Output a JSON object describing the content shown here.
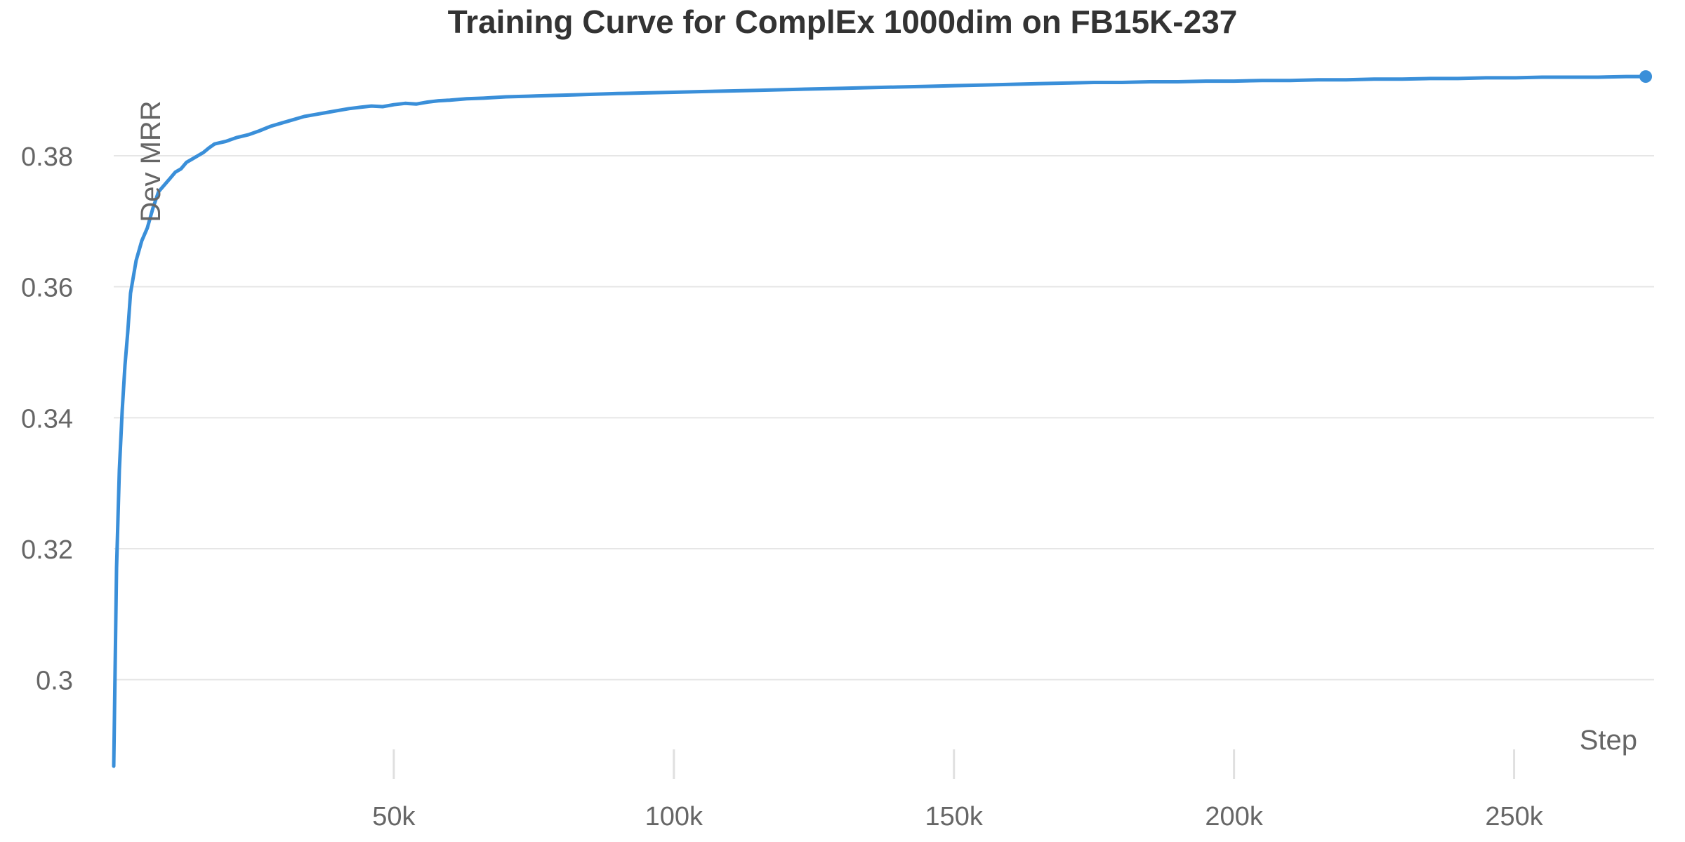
{
  "chart_data": {
    "type": "line",
    "title": "Training Curve for ComplEx 1000dim on FB15K-237",
    "xlabel": "Step",
    "ylabel": "Dev MRR",
    "xlim": [
      0,
      275000
    ],
    "ylim": [
      0.287,
      0.3935
    ],
    "x_ticks": [
      50000,
      100000,
      150000,
      200000,
      250000
    ],
    "x_tick_labels": [
      "50k",
      "100k",
      "150k",
      "200k",
      "250k"
    ],
    "y_ticks": [
      0.3,
      0.32,
      0.34,
      0.36,
      0.38
    ],
    "y_tick_labels": [
      "0.3",
      "0.32",
      "0.34",
      "0.36",
      "0.38"
    ],
    "grid": "horizontal",
    "legend": "none",
    "series": [
      {
        "color": "#3a8fd9",
        "x": [
          0,
          500,
          1000,
          1500,
          2000,
          2500,
          3000,
          4000,
          5000,
          6000,
          7000,
          8000,
          9000,
          10000,
          11000,
          12000,
          13000,
          14000,
          15000,
          16000,
          17000,
          18000,
          19000,
          20000,
          21000,
          22000,
          24000,
          26000,
          28000,
          30000,
          32000,
          34000,
          36000,
          38000,
          40000,
          42000,
          44000,
          46000,
          48000,
          50000,
          52000,
          54000,
          56000,
          58000,
          60000,
          63000,
          66000,
          70000,
          74000,
          78000,
          82000,
          86000,
          90000,
          95000,
          100000,
          105000,
          110000,
          115000,
          120000,
          125000,
          130000,
          135000,
          140000,
          145000,
          150000,
          155000,
          160000,
          165000,
          170000,
          175000,
          180000,
          185000,
          190000,
          195000,
          200000,
          205000,
          210000,
          215000,
          220000,
          225000,
          230000,
          235000,
          240000,
          245000,
          250000,
          255000,
          260000,
          265000,
          270000,
          273500
        ],
        "values": [
          0.2868,
          0.317,
          0.332,
          0.341,
          0.348,
          0.353,
          0.359,
          0.364,
          0.367,
          0.369,
          0.372,
          0.3745,
          0.3755,
          0.3765,
          0.3775,
          0.378,
          0.379,
          0.3795,
          0.38,
          0.3805,
          0.3812,
          0.3818,
          0.382,
          0.3822,
          0.3825,
          0.3828,
          0.3832,
          0.3838,
          0.3845,
          0.385,
          0.3855,
          0.386,
          0.3863,
          0.3866,
          0.3869,
          0.3872,
          0.3874,
          0.3876,
          0.3875,
          0.3878,
          0.388,
          0.3879,
          0.3882,
          0.3884,
          0.3885,
          0.3887,
          0.3888,
          0.389,
          0.3891,
          0.3892,
          0.3893,
          0.3894,
          0.3895,
          0.3896,
          0.3897,
          0.3898,
          0.3899,
          0.39,
          0.3901,
          0.3902,
          0.3903,
          0.3904,
          0.3905,
          0.3906,
          0.3907,
          0.3908,
          0.3909,
          0.391,
          0.3911,
          0.3912,
          0.3912,
          0.3913,
          0.3913,
          0.3914,
          0.3914,
          0.3915,
          0.3915,
          0.3916,
          0.3916,
          0.3917,
          0.3917,
          0.3918,
          0.3918,
          0.3919,
          0.3919,
          0.392,
          0.392,
          0.392,
          0.3921,
          0.3921
        ]
      }
    ]
  }
}
